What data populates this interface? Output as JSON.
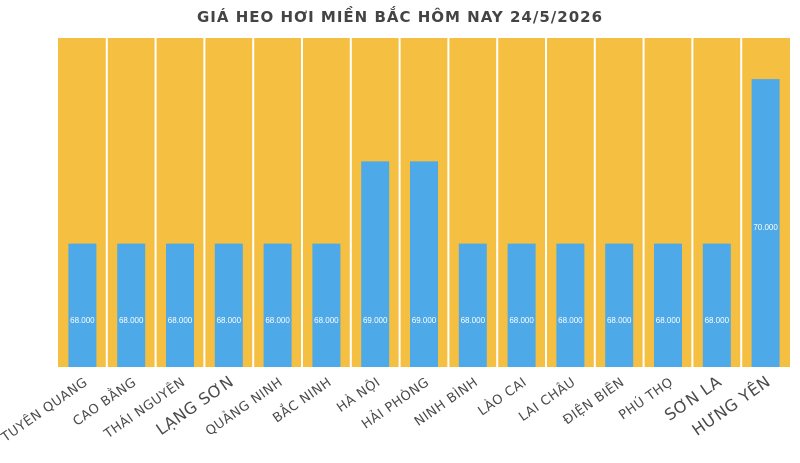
{
  "chart_data": {
    "type": "bar",
    "title": "GIÁ HEO HƠI MIỀN BẮC HÔM NAY 24/5/2026",
    "categories": [
      "TUYÊN QUANG",
      "CAO BẰNG",
      "THÁI NGUYÊN",
      "LẠNG SƠN",
      "QUẢNG NINH",
      "BẮC NINH",
      "HÀ NỘI",
      "HẢI PHÒNG",
      "NINH BÌNH",
      "LÀO CAI",
      "LAI CHÂU",
      "ĐIỆN BIÊN",
      "PHÚ THỌ",
      "SƠN LA",
      "HƯNG YÊN"
    ],
    "values": [
      68000,
      68000,
      68000,
      68000,
      68000,
      68000,
      69000,
      69000,
      68000,
      68000,
      68000,
      68000,
      68000,
      68000,
      70000
    ],
    "value_labels": [
      "68.000",
      "68.000",
      "68.000",
      "68.000",
      "68.000",
      "68.000",
      "69.000",
      "69.000",
      "68.000",
      "68.000",
      "68.000",
      "68.000",
      "68.000",
      "68.000",
      "70.000"
    ],
    "ylim": [
      66500,
      70500
    ],
    "xlabel": "",
    "ylabel": "",
    "grid": false,
    "legend": "none",
    "colors": {
      "bar": "#4DA9E8",
      "background": "#F5BF42",
      "separator": "#FFFFFF",
      "title": "#444444"
    }
  }
}
